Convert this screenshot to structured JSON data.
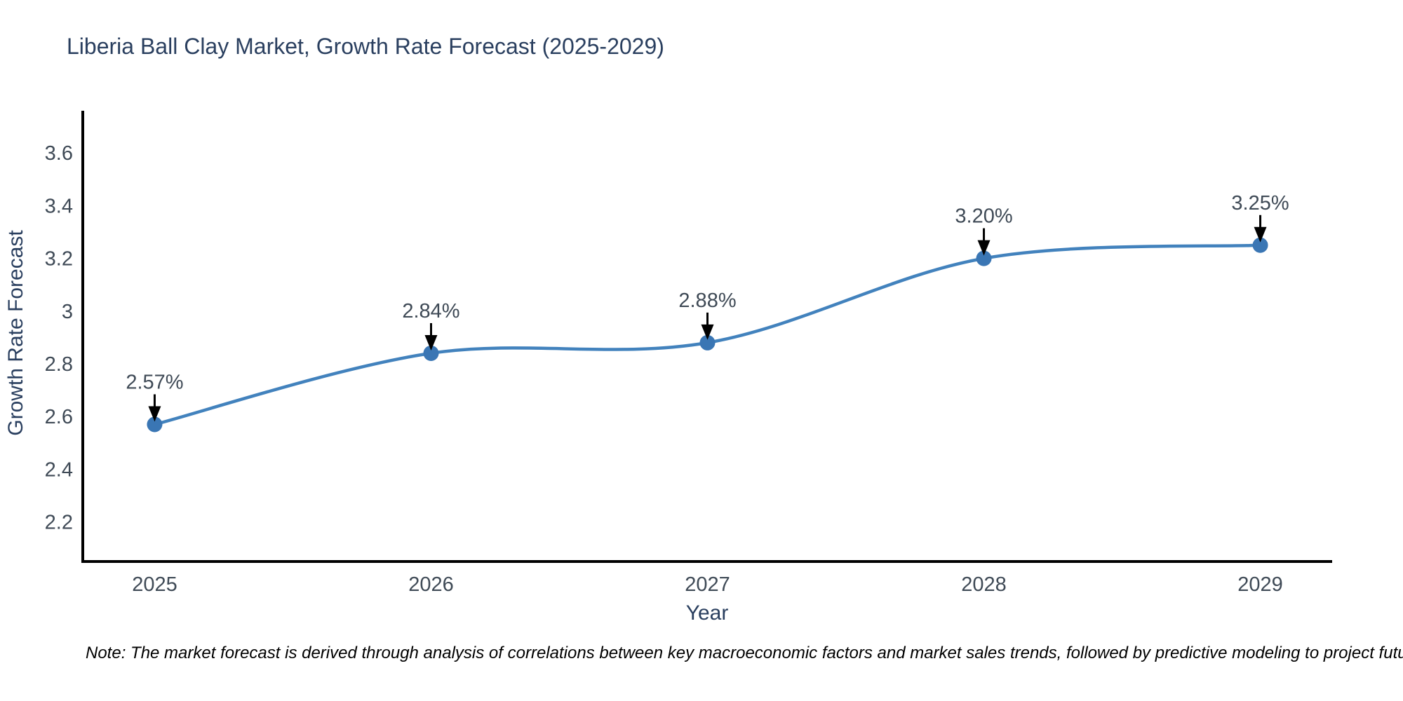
{
  "page": {
    "title": "Liberia Ball Clay Market, Growth Rate Forecast (2025-2029)",
    "footnote": "Note: The market forecast is derived through analysis of correlations between key macroeconomic factors and market sales trends, followed by predictive modeling to project future sales."
  },
  "chart_data": {
    "type": "line",
    "title": "Liberia Ball Clay Market, Growth Rate Forecast (2025-2029)",
    "xlabel": "Year",
    "ylabel": "Growth Rate Forecast",
    "x": [
      2025,
      2026,
      2027,
      2028,
      2029
    ],
    "series": [
      {
        "name": "Growth Rate Forecast",
        "values": [
          2.57,
          2.84,
          2.88,
          3.2,
          3.25
        ]
      }
    ],
    "point_labels": [
      "2.57%",
      "2.84%",
      "2.88%",
      "3.20%",
      "3.25%"
    ],
    "xticks": [
      2025,
      2026,
      2027,
      2028,
      2029
    ],
    "yticks": [
      2.2,
      2.4,
      2.6,
      2.8,
      3,
      3.2,
      3.4,
      3.6
    ],
    "xlim": [
      2024.74,
      2029.26
    ],
    "ylim": [
      2.05,
      3.76
    ],
    "line_shape": "spline",
    "grid": false,
    "legend": "none",
    "markers": true,
    "annotation_arrows": true,
    "colors": {
      "line": "#4282bd",
      "marker": "#3a76b4",
      "axis_line": "#000000",
      "title_text": "#2a3f5f",
      "axis_label_text": "#2a3f5f",
      "tick_text": "#3f4a56",
      "annotation_text": "#3f4a56",
      "arrow": "#000000",
      "note_text": "#000000",
      "background": "#ffffff"
    }
  }
}
